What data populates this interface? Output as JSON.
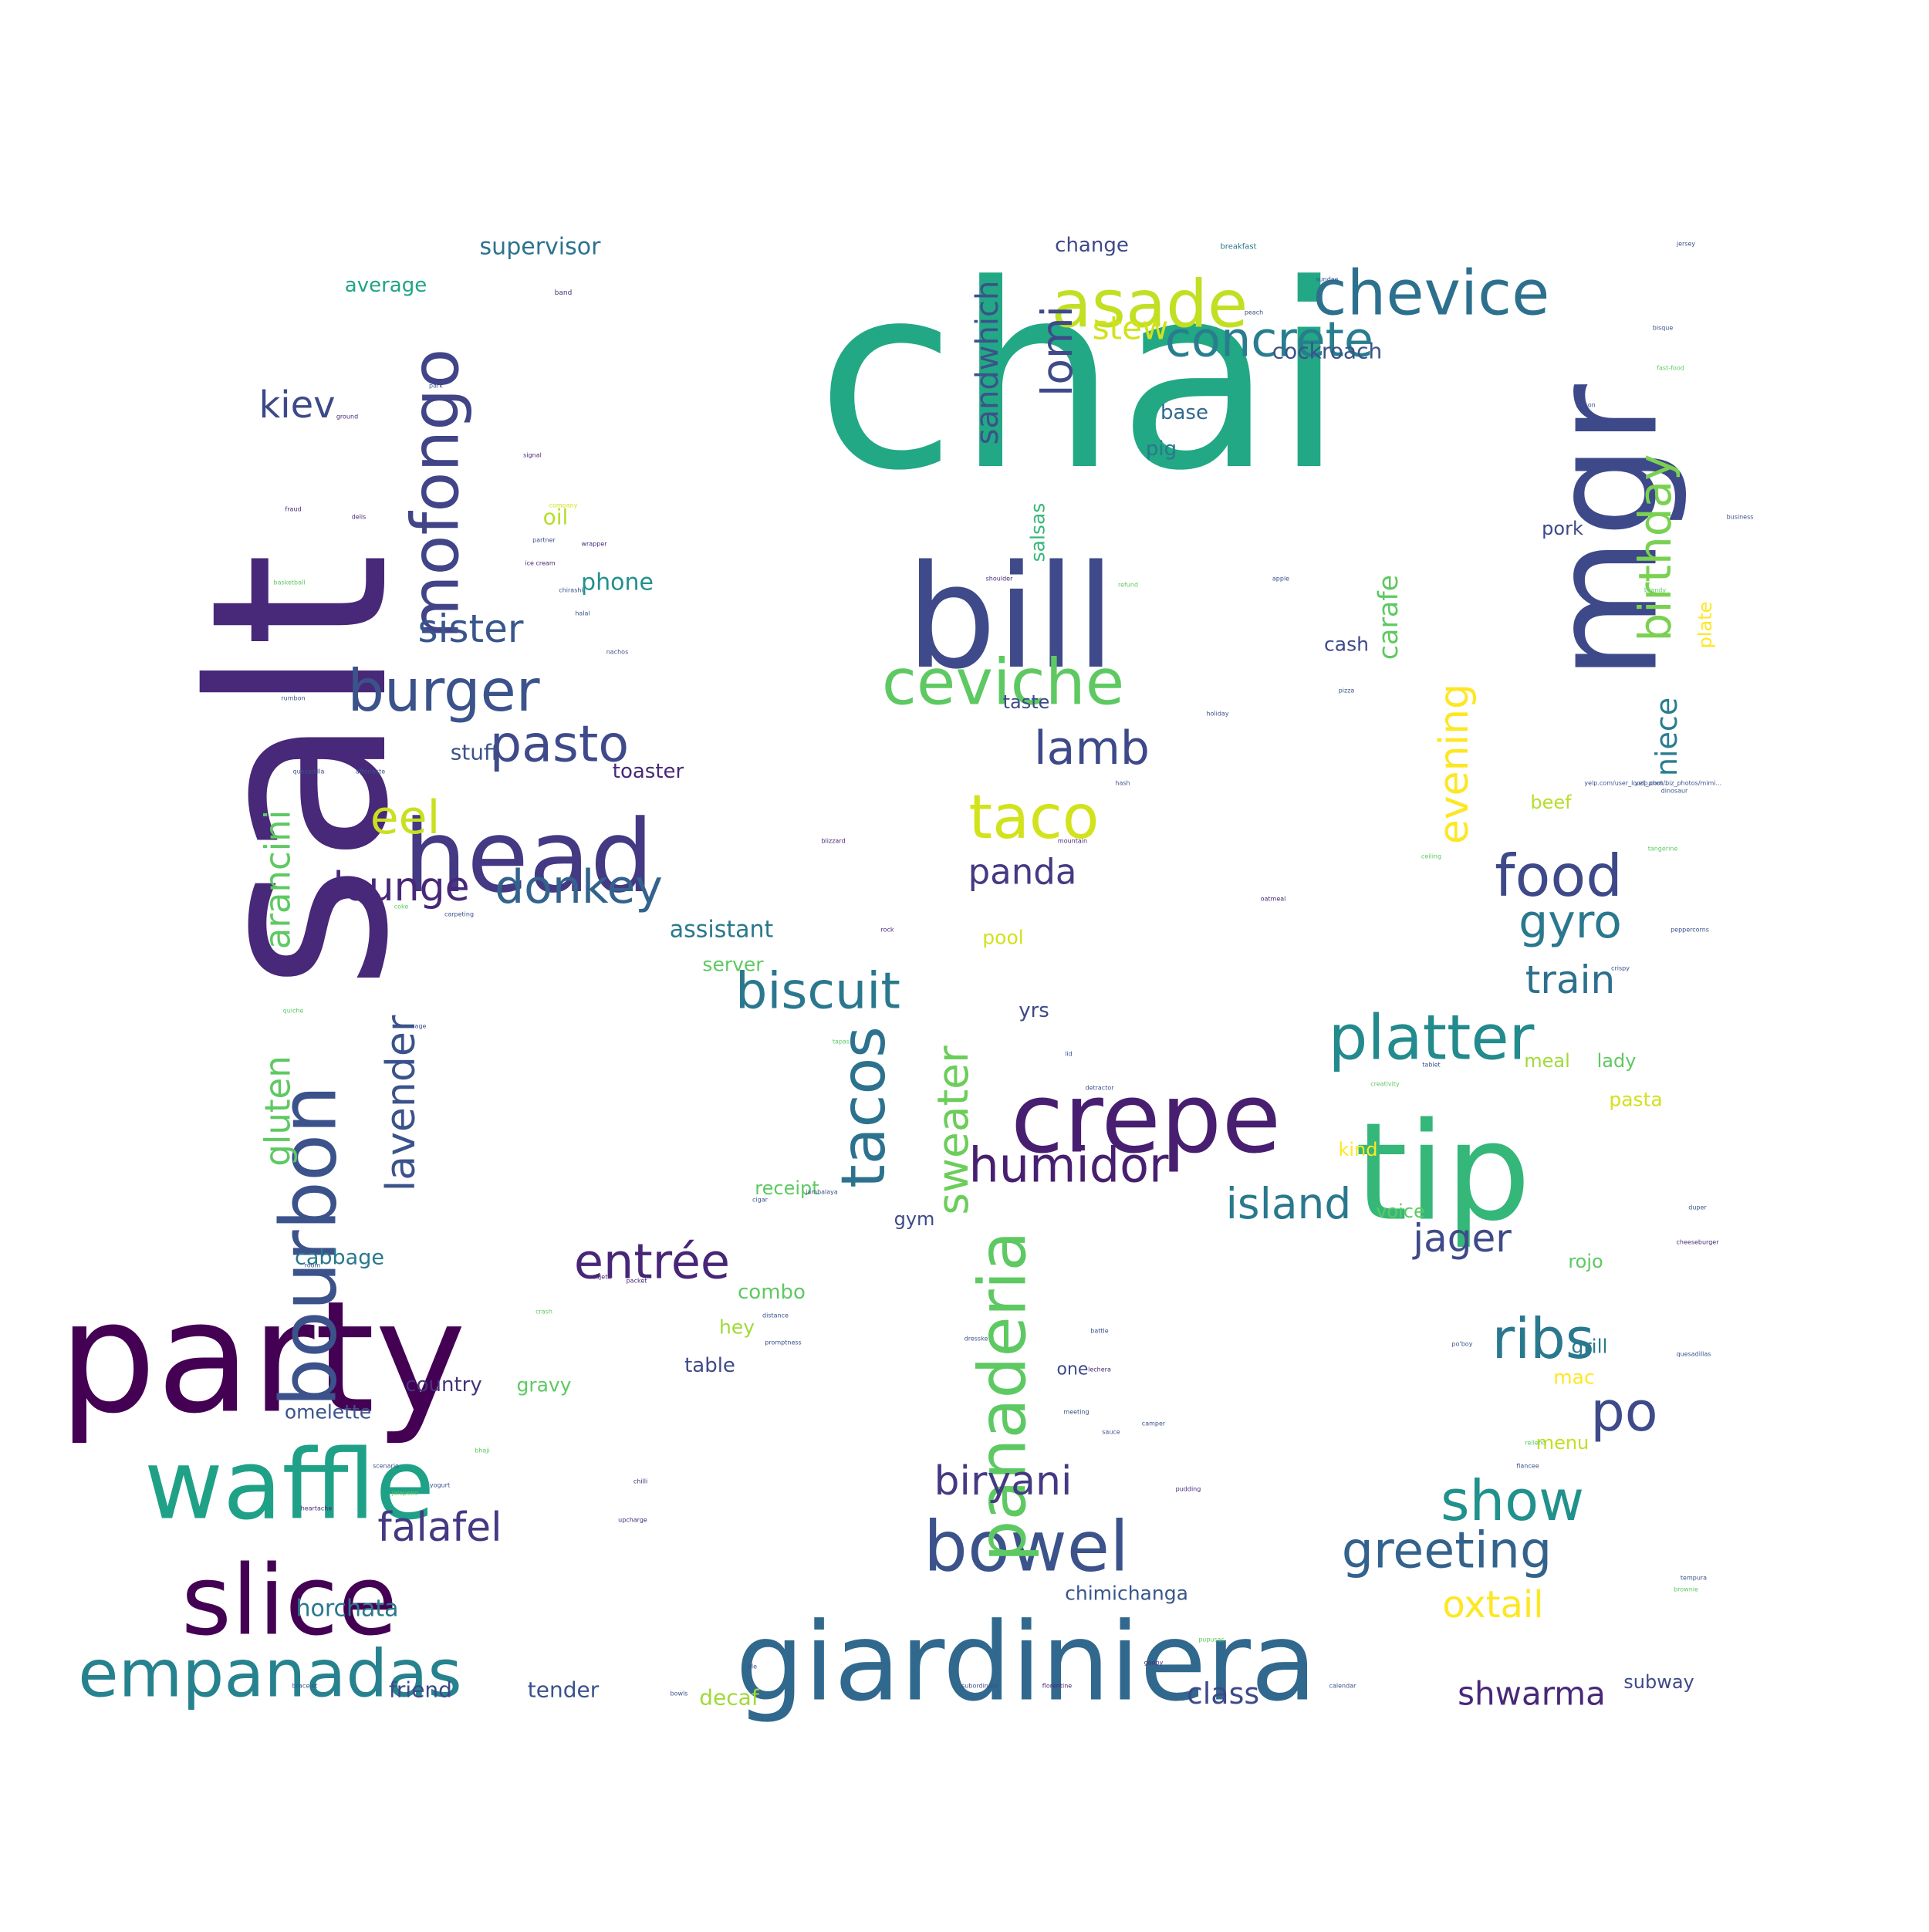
{
  "words": [
    {
      "text": "chai",
      "color": "#22a884"
    },
    {
      "text": "salt",
      "color": "#482878"
    },
    {
      "text": "party",
      "color": "#440154"
    },
    {
      "text": "bill",
      "color": "#3e4a89"
    },
    {
      "text": "mgr",
      "color": "#3e4989"
    },
    {
      "text": "tip",
      "color": "#35b779"
    },
    {
      "text": "giardiniera",
      "color": "#31688e"
    },
    {
      "text": "head",
      "color": "#443983"
    },
    {
      "text": "bourbon",
      "color": "#3b528b"
    },
    {
      "text": "crepe",
      "color": "#481f70"
    },
    {
      "text": "waffle",
      "color": "#1fa187"
    },
    {
      "text": "slice",
      "color": "#440154"
    },
    {
      "text": "mofongo",
      "color": "#414487"
    },
    {
      "text": "asade",
      "color": "#c2df23"
    },
    {
      "text": "chevice",
      "color": "#2d708e"
    },
    {
      "text": "ceviche",
      "color": "#5ec962"
    },
    {
      "text": "empanadas",
      "color": "#26828e"
    },
    {
      "text": "bowel",
      "color": "#3b528b"
    },
    {
      "text": "panaderia",
      "color": "#5ec962"
    },
    {
      "text": "tacos",
      "color": "#2c728e"
    },
    {
      "text": "taco",
      "color": "#d2e21b"
    },
    {
      "text": "platter",
      "color": "#238a8d"
    },
    {
      "text": "burger",
      "color": "#3b528b"
    },
    {
      "text": "food",
      "color": "#3e4989"
    },
    {
      "text": "ribs",
      "color": "#29788e"
    },
    {
      "text": "show",
      "color": "#21918c"
    },
    {
      "text": "greeting",
      "color": "#33638d"
    },
    {
      "text": "concrete",
      "color": "#287d8e"
    },
    {
      "text": "biscuit",
      "color": "#2a788e"
    },
    {
      "text": "pasto",
      "color": "#3e4a89"
    },
    {
      "text": "entrée",
      "color": "#482677"
    },
    {
      "text": "donkey",
      "color": "#33638d"
    },
    {
      "text": "humidor",
      "color": "#481f70"
    },
    {
      "text": "po",
      "color": "#3e4a89"
    },
    {
      "text": "eel",
      "color": "#c8e020"
    },
    {
      "text": "lamb",
      "color": "#3e4989"
    },
    {
      "text": "lomi",
      "color": "#3e4a89"
    },
    {
      "text": "birthday",
      "color": "#7ad151"
    },
    {
      "text": "sweater",
      "color": "#6ccd5a"
    },
    {
      "text": "sister",
      "color": "#39568c"
    },
    {
      "text": "gyro",
      "color": "#2a788e"
    },
    {
      "text": "biryani",
      "color": "#443a83"
    },
    {
      "text": "island",
      "color": "#2a788e"
    },
    {
      "text": "jager",
      "color": "#3e4a89"
    },
    {
      "text": "evening",
      "color": "#fde725"
    },
    {
      "text": "lavender",
      "color": "#3b528b"
    },
    {
      "text": "train",
      "color": "#2d708e"
    },
    {
      "text": "falafel",
      "color": "#443983"
    },
    {
      "text": "lounge",
      "color": "#482878"
    },
    {
      "text": "arancini",
      "color": "#5ec962"
    },
    {
      "text": "kiev",
      "color": "#3e4989"
    },
    {
      "text": "gluten",
      "color": "#5ec962"
    },
    {
      "text": "sandwhich",
      "color": "#3b528b"
    },
    {
      "text": "panda",
      "color": "#443983"
    },
    {
      "text": "oxtail",
      "color": "#fde725"
    },
    {
      "text": "stew",
      "color": "#d2e21b"
    },
    {
      "text": "niece",
      "color": "#287d8e"
    },
    {
      "text": "shwarma",
      "color": "#482878"
    },
    {
      "text": "class",
      "color": "#3e4989"
    },
    {
      "text": "assistant",
      "color": "#2a788e"
    },
    {
      "text": "carafe",
      "color": "#5ec962"
    },
    {
      "text": "cockroach",
      "color": "#3b528b"
    },
    {
      "text": "supervisor",
      "color": "#2c728e"
    },
    {
      "text": "chimichanga",
      "color": "#39568c"
    },
    {
      "text": "horchata",
      "color": "#2a788e"
    },
    {
      "text": "friend",
      "color": "#3e4989"
    },
    {
      "text": "tender",
      "color": "#3b528b"
    },
    {
      "text": "decaf",
      "color": "#a0da39"
    },
    {
      "text": "country",
      "color": "#46327e"
    },
    {
      "text": "omelette",
      "color": "#3b528b"
    },
    {
      "text": "gravy",
      "color": "#5ec962"
    },
    {
      "text": "table",
      "color": "#3e4a89"
    },
    {
      "text": "hey",
      "color": "#a0da39"
    },
    {
      "text": "combo",
      "color": "#5ec962"
    },
    {
      "text": "cabbage",
      "color": "#2a788e"
    },
    {
      "text": "receipt",
      "color": "#5ec962"
    },
    {
      "text": "gym",
      "color": "#3e4a89"
    },
    {
      "text": "stuff",
      "color": "#3b528b"
    },
    {
      "text": "toaster",
      "color": "#482878"
    },
    {
      "text": "phone",
      "color": "#21918c"
    },
    {
      "text": "oil",
      "color": "#b5de2b"
    },
    {
      "text": "average",
      "color": "#20a486"
    },
    {
      "text": "change",
      "color": "#3e4989"
    },
    {
      "text": "base",
      "color": "#31688e"
    },
    {
      "text": "pig",
      "color": "#2a788e"
    },
    {
      "text": "cash",
      "color": "#3e4989"
    },
    {
      "text": "salsas",
      "color": "#35b779"
    },
    {
      "text": "taste",
      "color": "#3e4989"
    },
    {
      "text": "pool",
      "color": "#d2e21b"
    },
    {
      "text": "yrs",
      "color": "#3e4989"
    },
    {
      "text": "server",
      "color": "#5ec962"
    },
    {
      "text": "kind",
      "color": "#fde725"
    },
    {
      "text": "voice",
      "color": "#5ec962"
    },
    {
      "text": "one",
      "color": "#3e4989"
    },
    {
      "text": "rojo",
      "color": "#5ec962"
    },
    {
      "text": "grill",
      "color": "#2a788e"
    },
    {
      "text": "mac",
      "color": "#fde725"
    },
    {
      "text": "menu",
      "color": "#c2df23"
    },
    {
      "text": "beef",
      "color": "#b5de2b"
    },
    {
      "text": "pork",
      "color": "#3e4989"
    },
    {
      "text": "meal",
      "color": "#a0da39"
    },
    {
      "text": "lady",
      "color": "#5ec962"
    },
    {
      "text": "pasta",
      "color": "#d2e21b"
    },
    {
      "text": "plate",
      "color": "#fde725"
    },
    {
      "text": "subway",
      "color": "#3e4989"
    },
    {
      "text": "breakfast",
      "color": "#2a788e"
    },
    {
      "text": "band",
      "color": "#46327e"
    },
    {
      "text": "park",
      "color": "#3b528b"
    },
    {
      "text": "ground",
      "color": "#482878"
    },
    {
      "text": "signal",
      "color": "#482878"
    },
    {
      "text": "company",
      "color": "#d2e21b"
    },
    {
      "text": "partner",
      "color": "#3b528b"
    },
    {
      "text": "fraud",
      "color": "#482878"
    },
    {
      "text": "delis",
      "color": "#482878"
    },
    {
      "text": "wrapper",
      "color": "#482878"
    },
    {
      "text": "ice cream",
      "color": "#482878"
    },
    {
      "text": "chirashi",
      "color": "#3b528b"
    },
    {
      "text": "basketball",
      "color": "#5ec962"
    },
    {
      "text": "halal",
      "color": "#3b528b"
    },
    {
      "text": "nachos",
      "color": "#3b528b"
    },
    {
      "text": "rumbon",
      "color": "#3b528b"
    },
    {
      "text": "quesadilla",
      "color": "#3b528b"
    },
    {
      "text": "afterlaste",
      "color": "#3b528b"
    },
    {
      "text": "blizzard",
      "color": "#482878"
    },
    {
      "text": "rock",
      "color": "#482878"
    },
    {
      "text": "coke",
      "color": "#5ec962"
    },
    {
      "text": "carpeting",
      "color": "#3b528b"
    },
    {
      "text": "quiche",
      "color": "#5ec962"
    },
    {
      "text": "age",
      "color": "#3b528b"
    },
    {
      "text": "tapas",
      "color": "#5ec962"
    },
    {
      "text": "cigar",
      "color": "#3b528b"
    },
    {
      "text": "jambalaya",
      "color": "#3b528b"
    },
    {
      "text": "room",
      "color": "#3b528b"
    },
    {
      "text": "packet",
      "color": "#482878"
    },
    {
      "text": "cajeta",
      "color": "#482878"
    },
    {
      "text": "crash",
      "color": "#5ec962"
    },
    {
      "text": "distance",
      "color": "#3b528b"
    },
    {
      "text": "promptness",
      "color": "#3b528b"
    },
    {
      "text": "scenario",
      "color": "#3b528b"
    },
    {
      "text": "heartache",
      "color": "#482878"
    },
    {
      "text": "jalapeno",
      "color": "#5ec962"
    },
    {
      "text": "yogurt",
      "color": "#3b528b"
    },
    {
      "text": "bhaji",
      "color": "#5ec962"
    },
    {
      "text": "chilli",
      "color": "#482878"
    },
    {
      "text": "upcharge",
      "color": "#482878"
    },
    {
      "text": "bracelet",
      "color": "#3b528b"
    },
    {
      "text": "bowls",
      "color": "#3b528b"
    },
    {
      "text": "ale",
      "color": "#3b528b"
    },
    {
      "text": "subordinate",
      "color": "#3b528b"
    },
    {
      "text": "florentine",
      "color": "#482878"
    },
    {
      "text": "goopy",
      "color": "#482878"
    },
    {
      "text": "pupusas",
      "color": "#5ec962"
    },
    {
      "text": "calendar",
      "color": "#3b528b"
    },
    {
      "text": "creativity",
      "color": "#5ec962"
    },
    {
      "text": "camper",
      "color": "#3b528b"
    },
    {
      "text": "duper",
      "color": "#3b528b"
    },
    {
      "text": "cheeseburger",
      "color": "#482878"
    },
    {
      "text": "quesadillas",
      "color": "#3b528b"
    },
    {
      "text": "brownie",
      "color": "#5ec962"
    },
    {
      "text": "tempura",
      "color": "#3b528b"
    },
    {
      "text": "pudding",
      "color": "#482878"
    },
    {
      "text": "hash",
      "color": "#3b528b"
    },
    {
      "text": "apple",
      "color": "#3b528b"
    },
    {
      "text": "shoulder",
      "color": "#482878"
    },
    {
      "text": "refund",
      "color": "#5ec962"
    },
    {
      "text": "holiday",
      "color": "#3b528b"
    },
    {
      "text": "pizza",
      "color": "#3b528b"
    },
    {
      "text": "sundae",
      "color": "#3b528b"
    },
    {
      "text": "peach",
      "color": "#3b528b"
    },
    {
      "text": "jersey",
      "color": "#3b528b"
    },
    {
      "text": "bisque",
      "color": "#3b528b"
    },
    {
      "text": "fast-food",
      "color": "#5ec962"
    },
    {
      "text": "lesson",
      "color": "#3b528b"
    },
    {
      "text": "business",
      "color": "#3b528b"
    },
    {
      "text": "brandy",
      "color": "#5ec962"
    },
    {
      "text": "mountain",
      "color": "#482878"
    },
    {
      "text": "oatmeal",
      "color": "#482878"
    },
    {
      "text": "peppercorns",
      "color": "#3b528b"
    },
    {
      "text": "yelp.com/biz_photos/mimi...",
      "color": "#3b528b"
    },
    {
      "text": "yelp.com/user_local_phot...",
      "color": "#3b528b"
    },
    {
      "text": "dinosaur",
      "color": "#3b528b"
    },
    {
      "text": "tangerine",
      "color": "#5ec962"
    },
    {
      "text": "ceiling",
      "color": "#5ec962"
    },
    {
      "text": "crispy",
      "color": "#3b528b"
    },
    {
      "text": "tablet",
      "color": "#3b528b"
    },
    {
      "text": "lid",
      "color": "#3b528b"
    },
    {
      "text": "detractor",
      "color": "#3b528b"
    },
    {
      "text": "dresske",
      "color": "#3b528b"
    },
    {
      "text": "po'boy",
      "color": "#3b528b"
    },
    {
      "text": "battle",
      "color": "#3b528b"
    },
    {
      "text": "lechera",
      "color": "#482878"
    },
    {
      "text": "meeting",
      "color": "#3b528b"
    },
    {
      "text": "relleno",
      "color": "#5ec962"
    },
    {
      "text": "fiancee",
      "color": "#3b528b"
    },
    {
      "text": "sauce",
      "color": "#3b528b"
    },
    {
      "text": "macaroni",
      "color": "#3b528b"
    },
    {
      "text": "fountain",
      "color": "#3b528b"
    },
    {
      "text": "spam",
      "color": "#5ec962"
    },
    {
      "text": "dumbel",
      "color": "#3b528b"
    },
    {
      "text": "bacon",
      "color": "#5ec962"
    }
  ]
}
